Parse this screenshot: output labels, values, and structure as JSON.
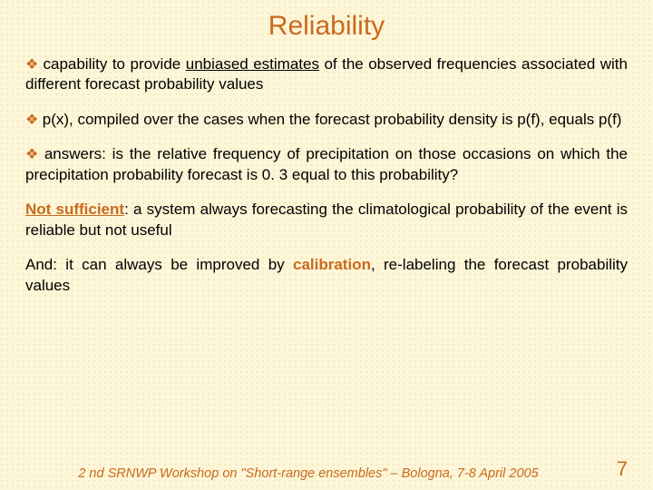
{
  "title": {
    "text": "Reliability",
    "color": "#c96a1e",
    "fontsize": 30
  },
  "bullet": {
    "glyph": "❖",
    "color": "#c96a1e"
  },
  "paragraphs": {
    "p1_a": "capability to provide ",
    "p1_under": "unbiased estimates",
    "p1_b": " of the observed frequencies associated with different forecast probability values",
    "p2": "p(x), compiled over the cases when the forecast probability density is p(f), equals p(f)",
    "p3": "answers: is the relative frequency of precipitation on those occasions on which the precipitation probability forecast is 0. 3 equal to this probability?",
    "p4_strong": "Not sufficient",
    "p4_rest": ": a system always forecasting the climatological probability of the event is reliable but not useful",
    "p5_a": "And: it can always be improved by ",
    "p5_strong": "calibration",
    "p5_b": ", re-labeling the forecast probability values"
  },
  "accent_color": "#c96a1e",
  "footer": {
    "text": "2 nd SRNWP Workshop on \"Short-range ensembles\" – Bologna, 7-8 April 2005",
    "color": "#c96a1e",
    "fontsize": 14.5
  },
  "page_number": {
    "value": "7",
    "color": "#c96a1e",
    "fontsize": 22
  },
  "background": {
    "base": "#fdf6d8",
    "pattern_dot": "rgba(200,180,100,0.25)"
  }
}
